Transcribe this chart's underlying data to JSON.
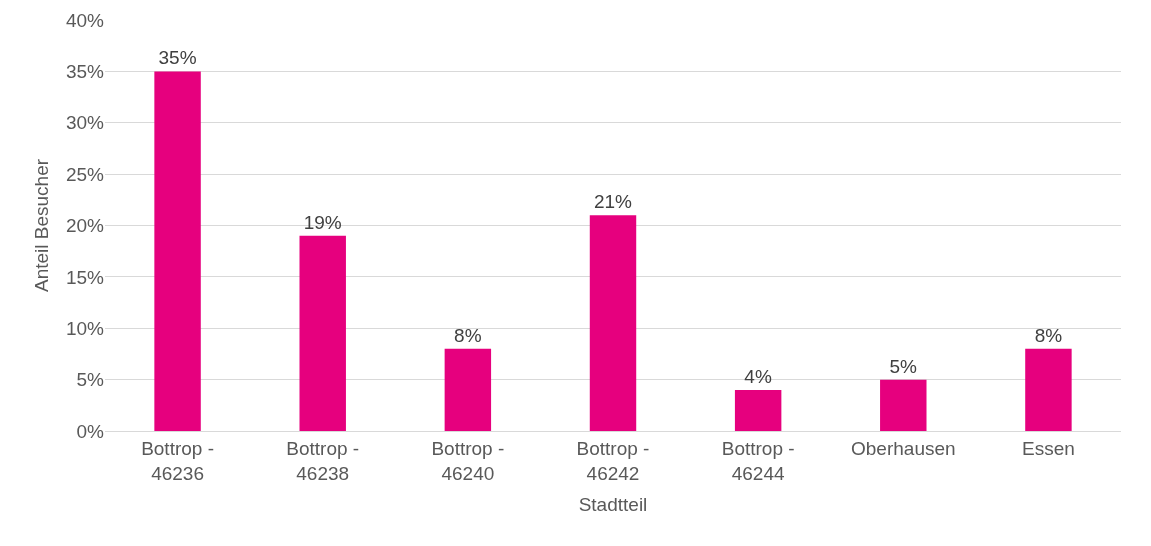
{
  "chart_data": {
    "type": "bar",
    "xlabel": "Stadtteil",
    "ylabel": "Anteil Besucher",
    "categories": [
      "Bottrop - 46236",
      "Bottrop - 46238",
      "Bottrop - 46240",
      "Bottrop - 46242",
      "Bottrop - 46244",
      "Oberhausen",
      "Essen"
    ],
    "values": [
      35,
      19,
      8,
      21,
      4,
      5,
      8
    ],
    "color": "#e6007e",
    "value_labels": [
      "35%",
      "19%",
      "8%",
      "21%",
      "4%",
      "5%",
      "8%"
    ],
    "ylim": [
      0,
      40
    ],
    "yticks": [
      {
        "value": 0,
        "label": "0%"
      },
      {
        "value": 5,
        "label": "5%"
      },
      {
        "value": 10,
        "label": "10%"
      },
      {
        "value": 15,
        "label": "15%"
      },
      {
        "value": 20,
        "label": "20%"
      },
      {
        "value": 25,
        "label": "25%"
      },
      {
        "value": 30,
        "label": "30%"
      },
      {
        "value": 35,
        "label": "35%"
      },
      {
        "value": 40,
        "label": "40%"
      }
    ],
    "grid": "y",
    "legend": false
  }
}
